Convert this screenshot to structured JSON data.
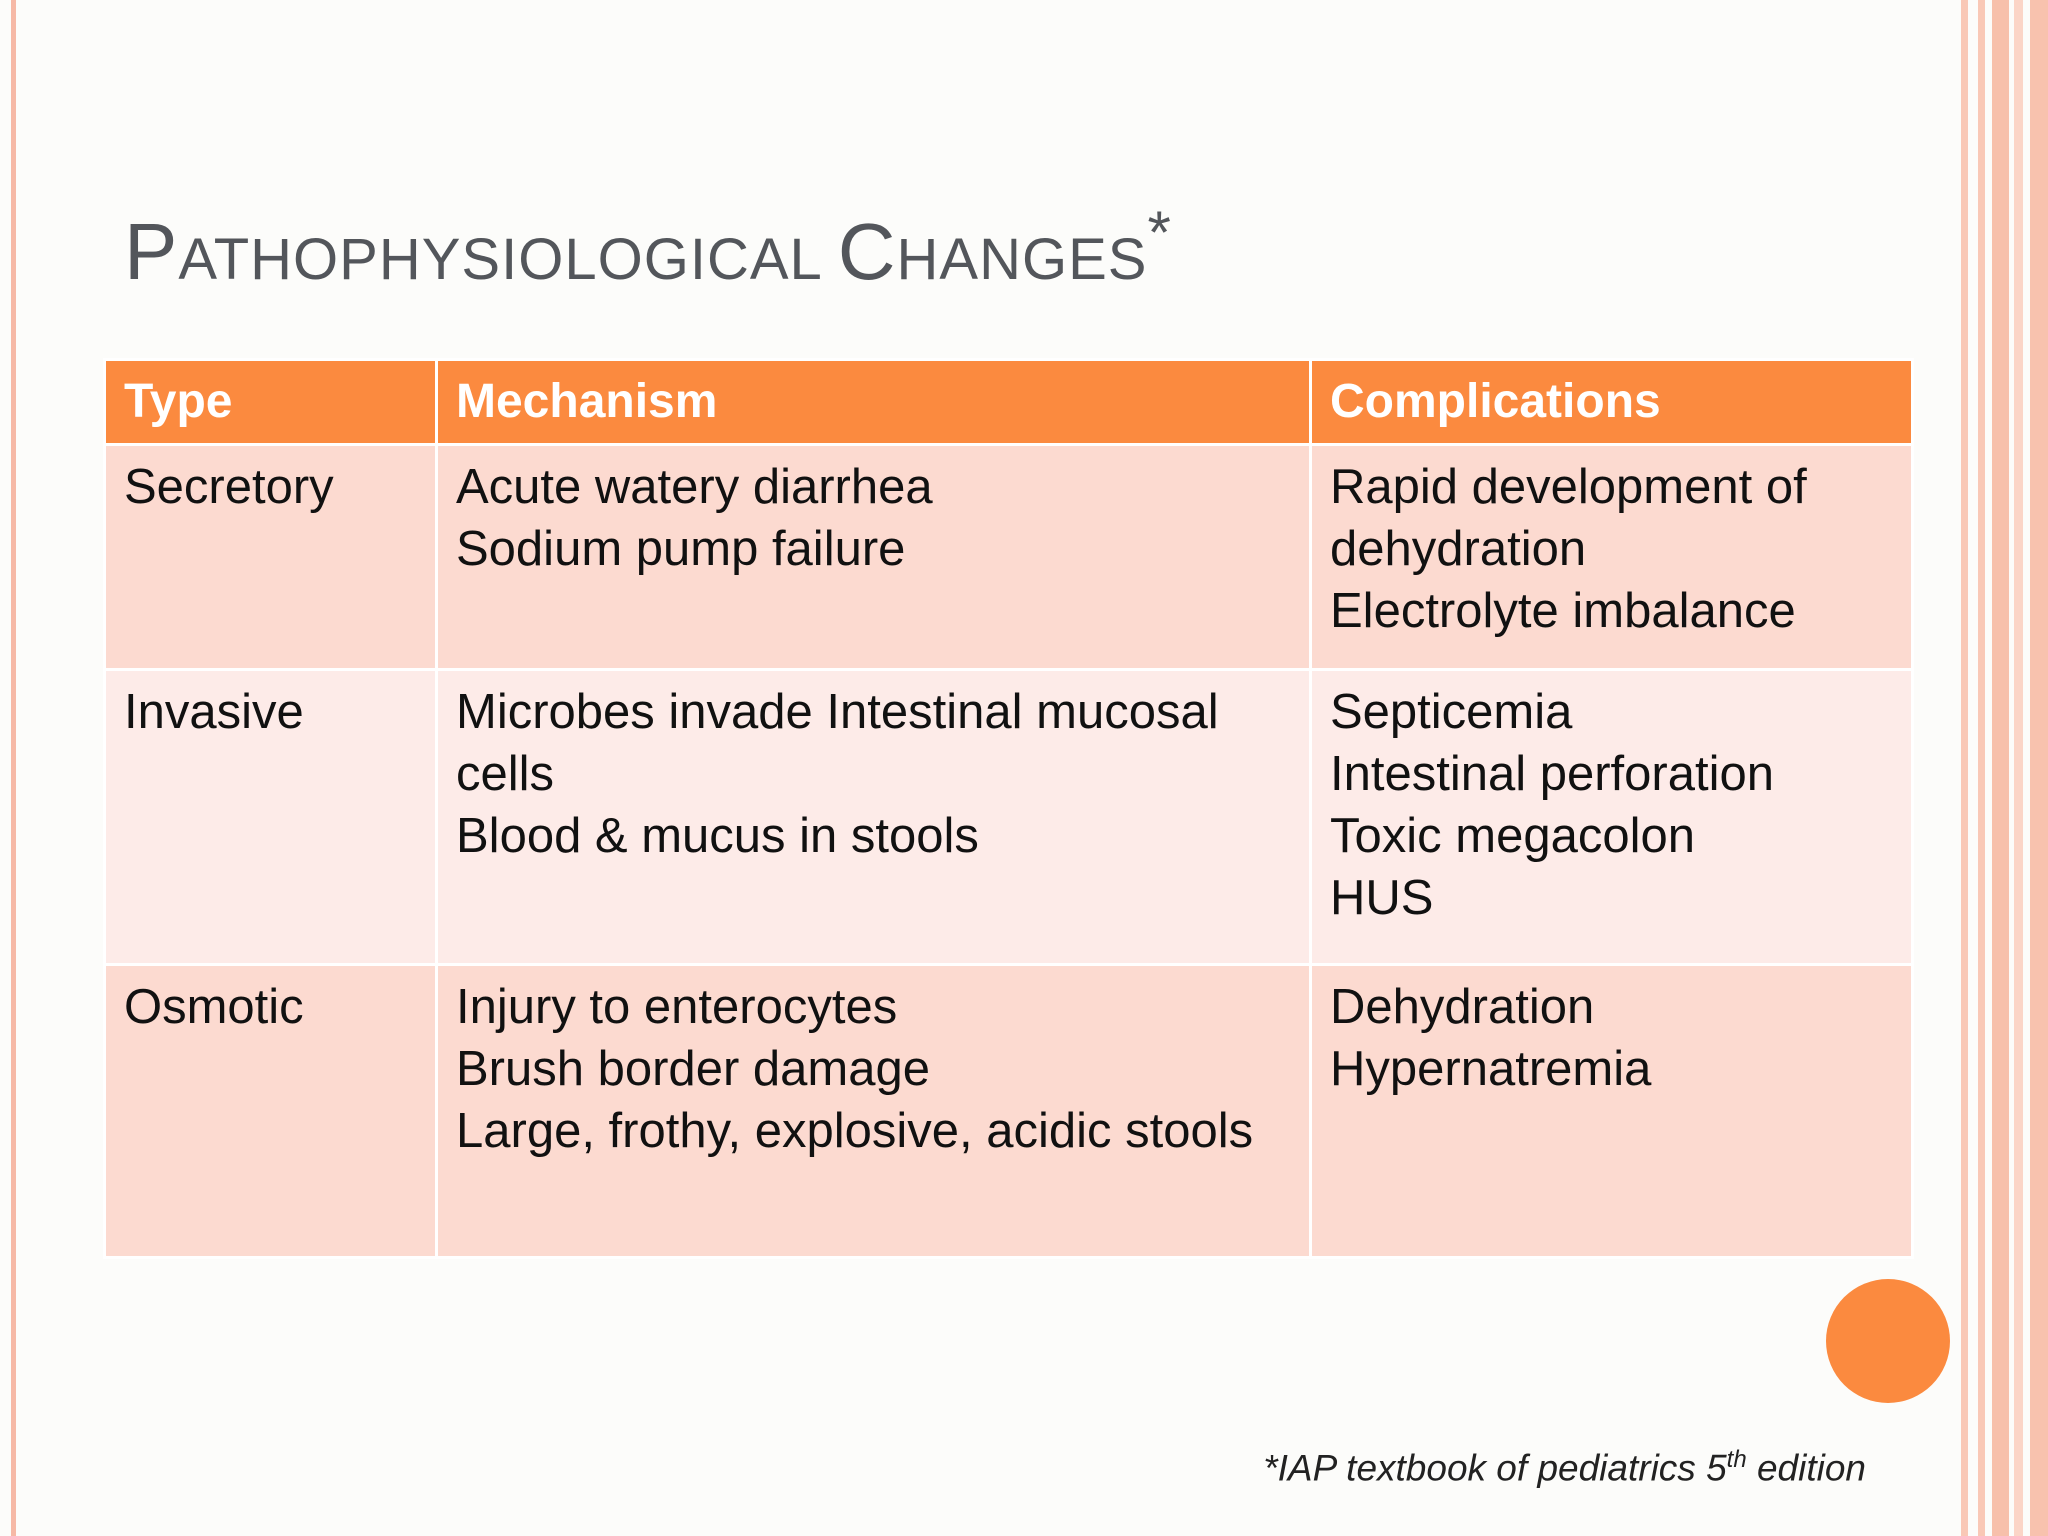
{
  "title": {
    "p_cap": "P",
    "p_rest": "ATHOPHYSIOLOGICAL ",
    "c_cap": "C",
    "c_rest": "HANGES",
    "star": "*"
  },
  "table": {
    "headers": [
      "Type",
      "Mechanism",
      "Complications"
    ],
    "rows": [
      {
        "type": "Secretory",
        "mechanism": [
          "Acute watery diarrhea",
          "Sodium pump failure"
        ],
        "complications": [
          "Rapid development of dehydration",
          "Electrolyte imbalance"
        ]
      },
      {
        "type": "Invasive",
        "mechanism": [
          "Microbes invade Intestinal mucosal cells",
          "Blood & mucus in stools"
        ],
        "complications": [
          "Septicemia",
          "Intestinal perforation",
          "Toxic megacolon",
          "HUS"
        ]
      },
      {
        "type": "Osmotic",
        "mechanism": [
          "Injury to enterocytes",
          "Brush border damage",
          "Large, frothy, explosive, acidic stools"
        ],
        "complications": [
          "Dehydration",
          "Hypernatremia"
        ]
      }
    ]
  },
  "footnote": {
    "before": "*IAP textbook of pediatrics 5",
    "sup": "th",
    "after": " edition"
  },
  "colors": {
    "header": "#fb8a3f",
    "row_odd": "#fcdad0",
    "row_even": "#fdebe8",
    "accent_circle": "#fb8a3f"
  }
}
